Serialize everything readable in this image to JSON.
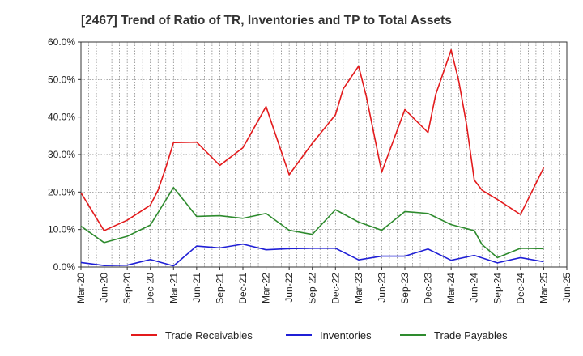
{
  "chart_data": {
    "type": "line",
    "title": "[2467]  Trend of Ratio of TR, Inventories and TP to Total Assets",
    "xlabel": "",
    "ylabel": "",
    "ylim": [
      0,
      60
    ],
    "yticks": [
      "0.0%",
      "10.0%",
      "20.0%",
      "30.0%",
      "40.0%",
      "50.0%",
      "60.0%"
    ],
    "xticks": [
      "Mar-20",
      "Jun-20",
      "Sep-20",
      "Dec-20",
      "Mar-21",
      "Jun-21",
      "Sep-21",
      "Dec-21",
      "Mar-22",
      "Jun-22",
      "Sep-22",
      "Dec-22",
      "Mar-23",
      "Jun-23",
      "Sep-23",
      "Dec-23",
      "Mar-24",
      "Jun-24",
      "Sep-24",
      "Dec-24",
      "Mar-25",
      "Jun-25"
    ],
    "grid": true,
    "legend_position": "bottom",
    "x": [
      "Mar-20",
      "Apr-20",
      "May-20",
      "Jun-20",
      "Jul-20",
      "Aug-20",
      "Sep-20",
      "Oct-20",
      "Nov-20",
      "Dec-20",
      "Jan-21",
      "Feb-21",
      "Mar-21",
      "Apr-21",
      "May-21",
      "Jun-21",
      "Jul-21",
      "Aug-21",
      "Sep-21",
      "Oct-21",
      "Nov-21",
      "Dec-21",
      "Jan-22",
      "Feb-22",
      "Mar-22",
      "Apr-22",
      "May-22",
      "Jun-22",
      "Jul-22",
      "Aug-22",
      "Sep-22",
      "Oct-22",
      "Nov-22",
      "Dec-22",
      "Jan-23",
      "Feb-23",
      "Mar-23",
      "Apr-23",
      "May-23",
      "Jun-23",
      "Jul-23",
      "Aug-23",
      "Sep-23",
      "Oct-23",
      "Nov-23",
      "Dec-23",
      "Jan-24",
      "Feb-24",
      "Mar-24",
      "Apr-24",
      "May-24",
      "Jun-24",
      "Jul-24",
      "Aug-24",
      "Sep-24",
      "Oct-24",
      "Nov-24",
      "Dec-24",
      "Jan-25",
      "Feb-25",
      "Mar-25"
    ],
    "series": [
      {
        "name": "Trade Receivables",
        "color": "#e31a1c",
        "values": [
          19.8,
          null,
          null,
          9.7,
          null,
          null,
          12.5,
          null,
          null,
          16.5,
          20.5,
          26.5,
          33.2,
          null,
          null,
          33.3,
          null,
          null,
          27.1,
          null,
          null,
          31.8,
          null,
          null,
          42.8,
          null,
          null,
          24.6,
          null,
          null,
          33.0,
          null,
          null,
          40.6,
          47.5,
          null,
          53.6,
          45.5,
          null,
          25.3,
          null,
          null,
          42.0,
          null,
          null,
          35.9,
          46.0,
          null,
          57.9,
          49.5,
          38.0,
          23.2,
          20.5,
          null,
          18.0,
          null,
          null,
          14.0,
          null,
          null,
          26.5
        ]
      },
      {
        "name": "Inventories",
        "color": "#1f1fd6",
        "values": [
          1.2,
          null,
          null,
          0.4,
          null,
          null,
          0.5,
          null,
          null,
          2.0,
          null,
          null,
          0.3,
          null,
          null,
          5.6,
          null,
          null,
          5.1,
          null,
          null,
          6.1,
          null,
          null,
          4.6,
          null,
          null,
          4.9,
          null,
          null,
          5.0,
          null,
          null,
          5.0,
          null,
          null,
          1.9,
          null,
          null,
          2.9,
          null,
          null,
          2.9,
          null,
          null,
          4.8,
          null,
          null,
          1.8,
          null,
          null,
          3.1,
          null,
          null,
          1.1,
          null,
          null,
          2.5,
          null,
          null,
          1.4
        ]
      },
      {
        "name": "Trade Payables",
        "color": "#2e8b2e",
        "values": [
          10.9,
          null,
          null,
          6.5,
          null,
          null,
          8.2,
          null,
          null,
          11.2,
          null,
          null,
          21.2,
          null,
          null,
          13.5,
          null,
          null,
          13.7,
          null,
          null,
          13.0,
          null,
          null,
          14.3,
          null,
          null,
          9.8,
          null,
          null,
          8.7,
          null,
          null,
          15.3,
          null,
          null,
          12.0,
          null,
          null,
          9.8,
          null,
          null,
          14.8,
          null,
          null,
          14.3,
          null,
          null,
          11.3,
          null,
          null,
          9.7,
          6.0,
          null,
          2.5,
          null,
          null,
          5.0,
          null,
          null,
          4.9
        ]
      }
    ]
  }
}
